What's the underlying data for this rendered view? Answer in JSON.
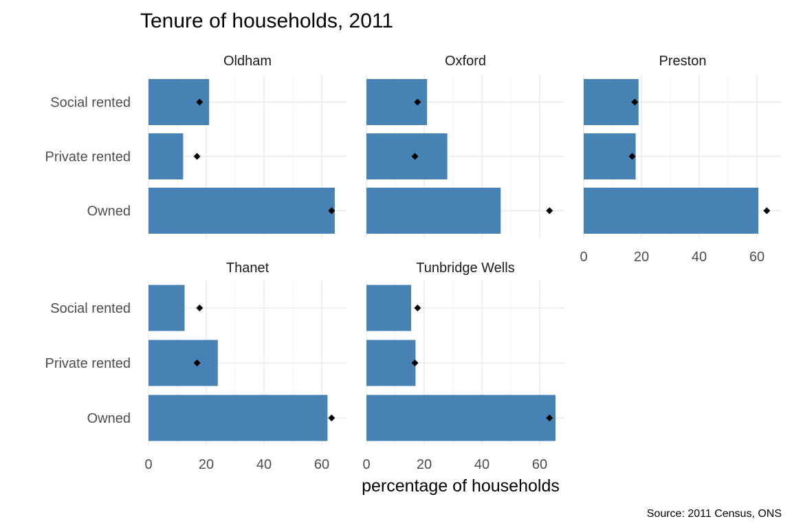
{
  "chart_data": {
    "type": "bar",
    "title": "Tenure of households, 2011",
    "xlabel": "percentage of households",
    "ylabel": "",
    "caption": "Source: 2011 Census, ONS",
    "categories": [
      "Social rented",
      "Private rented",
      "Owned"
    ],
    "xlim": [
      0,
      66
    ],
    "xticks": [
      0,
      20,
      40,
      60
    ],
    "grid": true,
    "bar_color": "#4682B4",
    "marker_color": "#000000",
    "panels": [
      {
        "name": "Oldham",
        "values": [
          21,
          12,
          64.5
        ],
        "reference": [
          17.7,
          16.8,
          63.4
        ]
      },
      {
        "name": "Oxford",
        "values": [
          21,
          28,
          46.5
        ],
        "reference": [
          17.7,
          16.8,
          63.4
        ]
      },
      {
        "name": "Preston",
        "values": [
          19,
          18,
          60.5
        ],
        "reference": [
          17.7,
          16.8,
          63.4
        ]
      },
      {
        "name": "Thanet",
        "values": [
          12.5,
          24,
          62
        ],
        "reference": [
          17.7,
          16.8,
          63.4
        ]
      },
      {
        "name": "Tunbridge Wells",
        "values": [
          15.5,
          17,
          65.5
        ],
        "reference": [
          17.7,
          16.8,
          63.4
        ]
      }
    ]
  }
}
